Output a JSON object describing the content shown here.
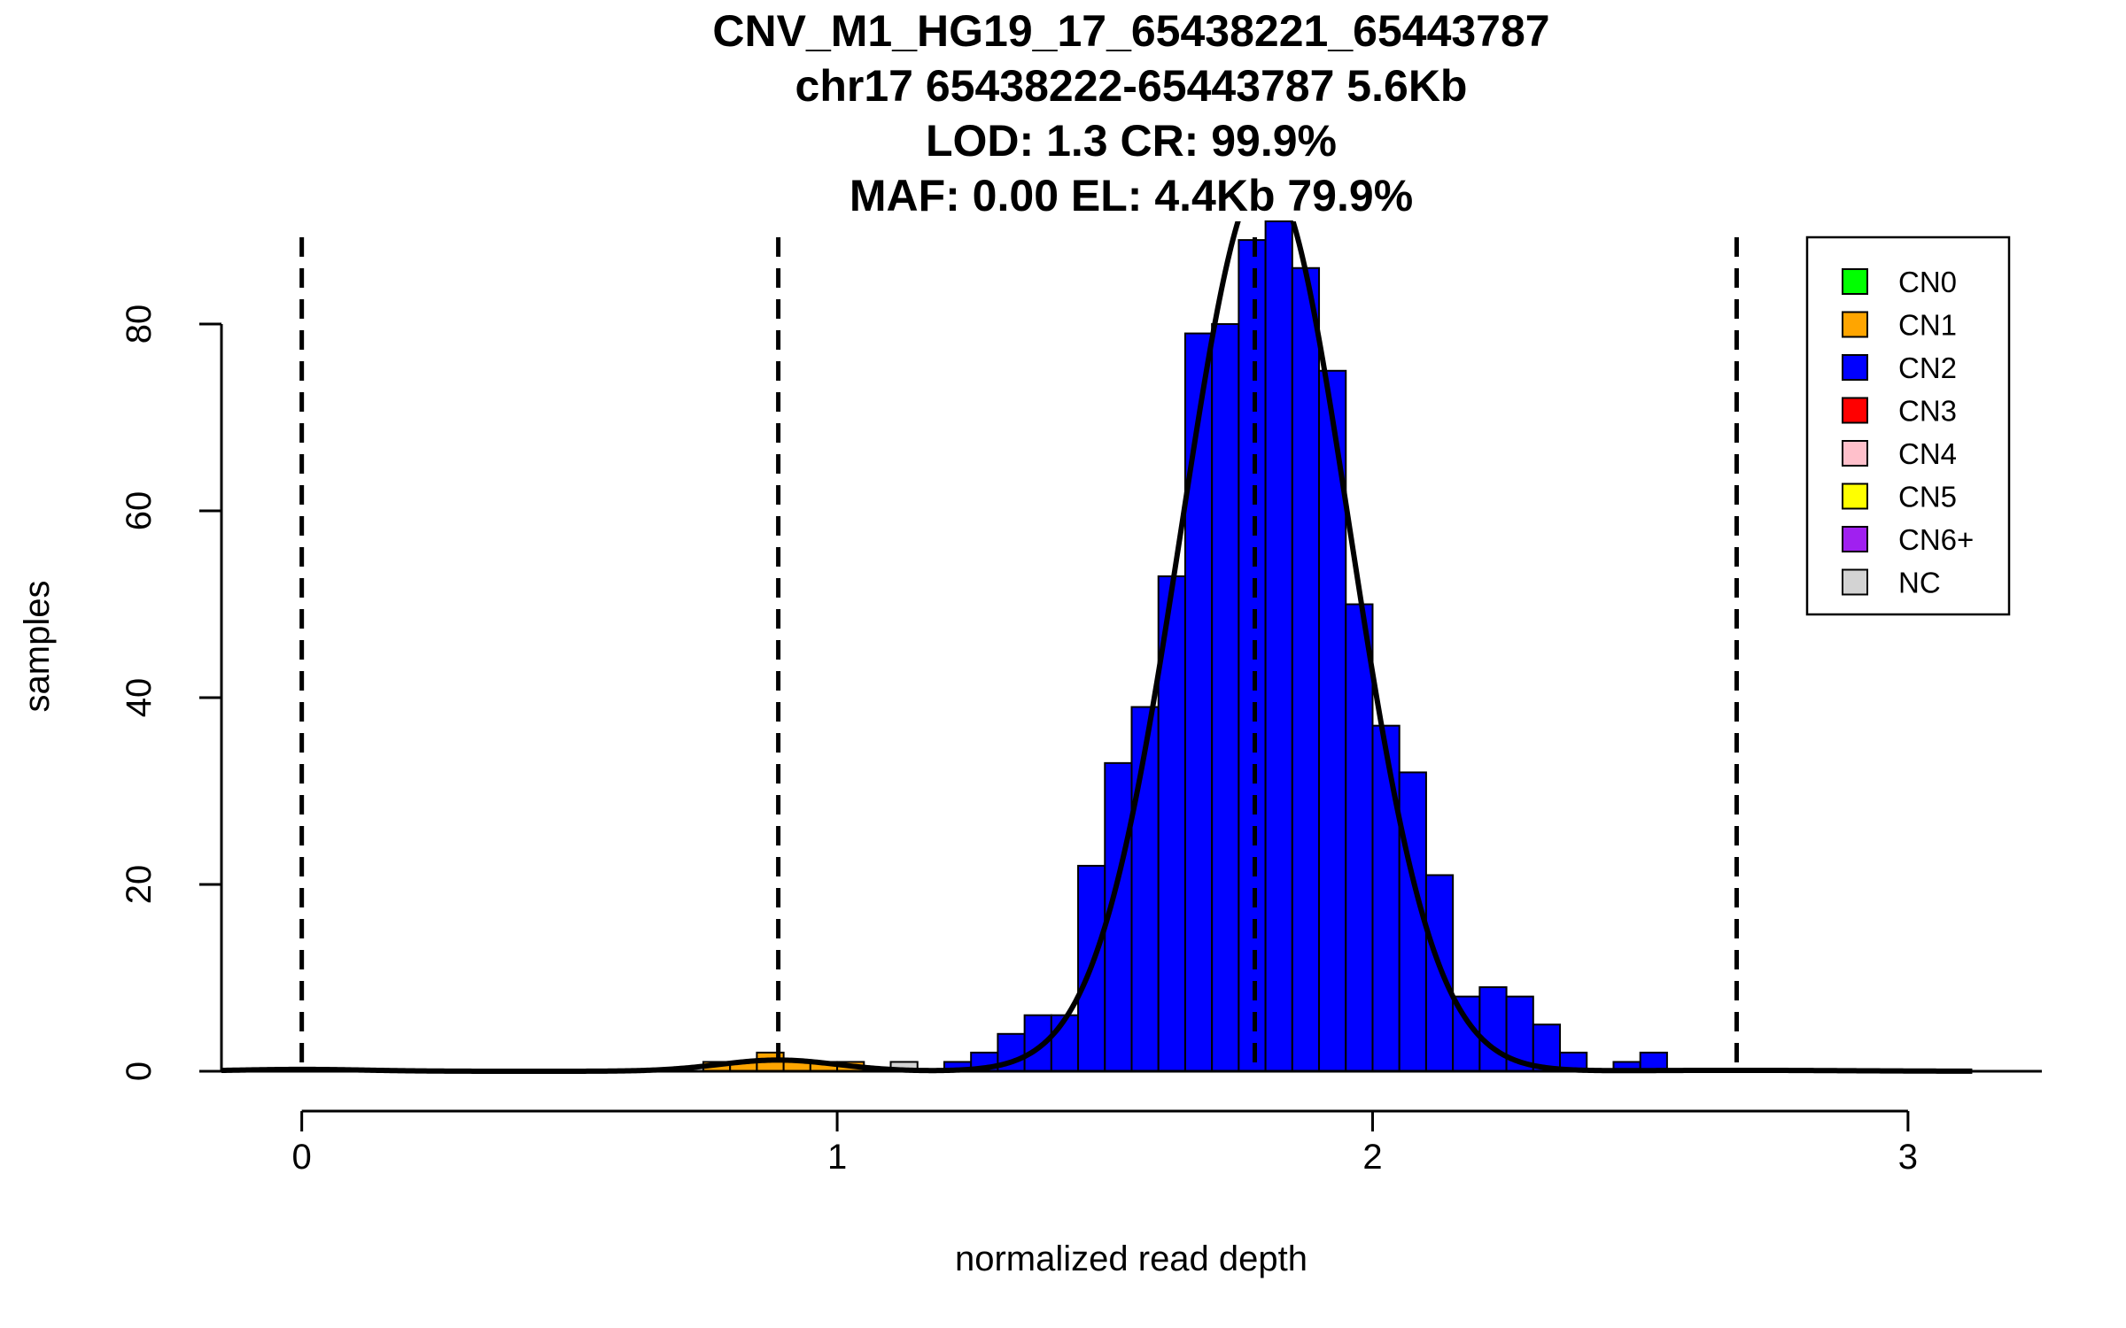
{
  "chart_data": {
    "type": "bar",
    "title_lines": [
      "CNV_M1_HG19_17_65438221_65443787",
      "chr17 65438222-65443787 5.6Kb",
      "LOD: 1.3 CR: 99.9%",
      "MAF: 0.00 EL: 4.4Kb 79.9%"
    ],
    "xlabel": "normalized read depth",
    "ylabel": "samples",
    "xlim": [
      -0.15,
      3.25
    ],
    "ylim": [
      0,
      91
    ],
    "x_ticks": [
      0,
      1,
      2,
      3
    ],
    "x_tick_labels": [
      "0",
      "1",
      "2",
      "3"
    ],
    "y_ticks": [
      0,
      20,
      40,
      60,
      80
    ],
    "y_tick_labels": [
      "0",
      "20",
      "40",
      "60",
      "80"
    ],
    "bin_width": 0.05,
    "series": [
      {
        "name": "CN1",
        "color": "#FFA500",
        "bins": [
          {
            "x0": 0.75,
            "x1": 0.8,
            "count": 1
          },
          {
            "x0": 0.8,
            "x1": 0.85,
            "count": 1
          },
          {
            "x0": 0.85,
            "x1": 0.9,
            "count": 2
          },
          {
            "x0": 0.9,
            "x1": 0.95,
            "count": 1
          },
          {
            "x0": 0.95,
            "x1": 1.0,
            "count": 1
          },
          {
            "x0": 1.0,
            "x1": 1.05,
            "count": 1
          }
        ]
      },
      {
        "name": "NC",
        "color": "#D3D3D3",
        "bins": [
          {
            "x0": 1.1,
            "x1": 1.15,
            "count": 1
          }
        ]
      },
      {
        "name": "CN2",
        "color": "#0000FF",
        "bins": [
          {
            "x0": 1.2,
            "x1": 1.25,
            "count": 1
          },
          {
            "x0": 1.25,
            "x1": 1.3,
            "count": 2
          },
          {
            "x0": 1.3,
            "x1": 1.35,
            "count": 4
          },
          {
            "x0": 1.35,
            "x1": 1.4,
            "count": 6
          },
          {
            "x0": 1.4,
            "x1": 1.45,
            "count": 6
          },
          {
            "x0": 1.45,
            "x1": 1.5,
            "count": 22
          },
          {
            "x0": 1.5,
            "x1": 1.55,
            "count": 33
          },
          {
            "x0": 1.55,
            "x1": 1.6,
            "count": 39
          },
          {
            "x0": 1.6,
            "x1": 1.65,
            "count": 53
          },
          {
            "x0": 1.65,
            "x1": 1.7,
            "count": 79
          },
          {
            "x0": 1.7,
            "x1": 1.75,
            "count": 80
          },
          {
            "x0": 1.75,
            "x1": 1.8,
            "count": 89
          },
          {
            "x0": 1.8,
            "x1": 1.85,
            "count": 91
          },
          {
            "x0": 1.85,
            "x1": 1.9,
            "count": 86
          },
          {
            "x0": 1.9,
            "x1": 1.95,
            "count": 75
          },
          {
            "x0": 1.95,
            "x1": 2.0,
            "count": 50
          },
          {
            "x0": 2.0,
            "x1": 2.05,
            "count": 37
          },
          {
            "x0": 2.05,
            "x1": 2.1,
            "count": 32
          },
          {
            "x0": 2.1,
            "x1": 2.15,
            "count": 21
          },
          {
            "x0": 2.15,
            "x1": 2.2,
            "count": 8
          },
          {
            "x0": 2.2,
            "x1": 2.25,
            "count": 9
          },
          {
            "x0": 2.25,
            "x1": 2.3,
            "count": 8
          },
          {
            "x0": 2.3,
            "x1": 2.35,
            "count": 5
          },
          {
            "x0": 2.35,
            "x1": 2.4,
            "count": 2
          },
          {
            "x0": 2.45,
            "x1": 2.5,
            "count": 1
          },
          {
            "x0": 2.5,
            "x1": 2.55,
            "count": 2
          }
        ]
      }
    ],
    "density_curves": [
      {
        "mean": 0.0,
        "sd": 0.12,
        "peak": 0.2
      },
      {
        "mean": 0.89,
        "sd": 0.11,
        "peak": 1.2
      },
      {
        "mean": 1.8,
        "sd": 0.157,
        "peak": 96
      },
      {
        "mean": 2.68,
        "sd": 0.2,
        "peak": 0.1
      }
    ],
    "vlines": [
      0.0,
      0.89,
      1.78,
      2.68
    ],
    "legend": {
      "position": "top-right",
      "entries": [
        {
          "label": "CN0",
          "color": "#00FF00"
        },
        {
          "label": "CN1",
          "color": "#FFA500"
        },
        {
          "label": "CN2",
          "color": "#0000FF"
        },
        {
          "label": "CN3",
          "color": "#FF0000"
        },
        {
          "label": "CN4",
          "color": "#FFC0CB"
        },
        {
          "label": "CN5",
          "color": "#FFFF00"
        },
        {
          "label": "CN6+",
          "color": "#A020F0"
        },
        {
          "label": "NC",
          "color": "#D3D3D3"
        }
      ]
    },
    "grid": false
  }
}
